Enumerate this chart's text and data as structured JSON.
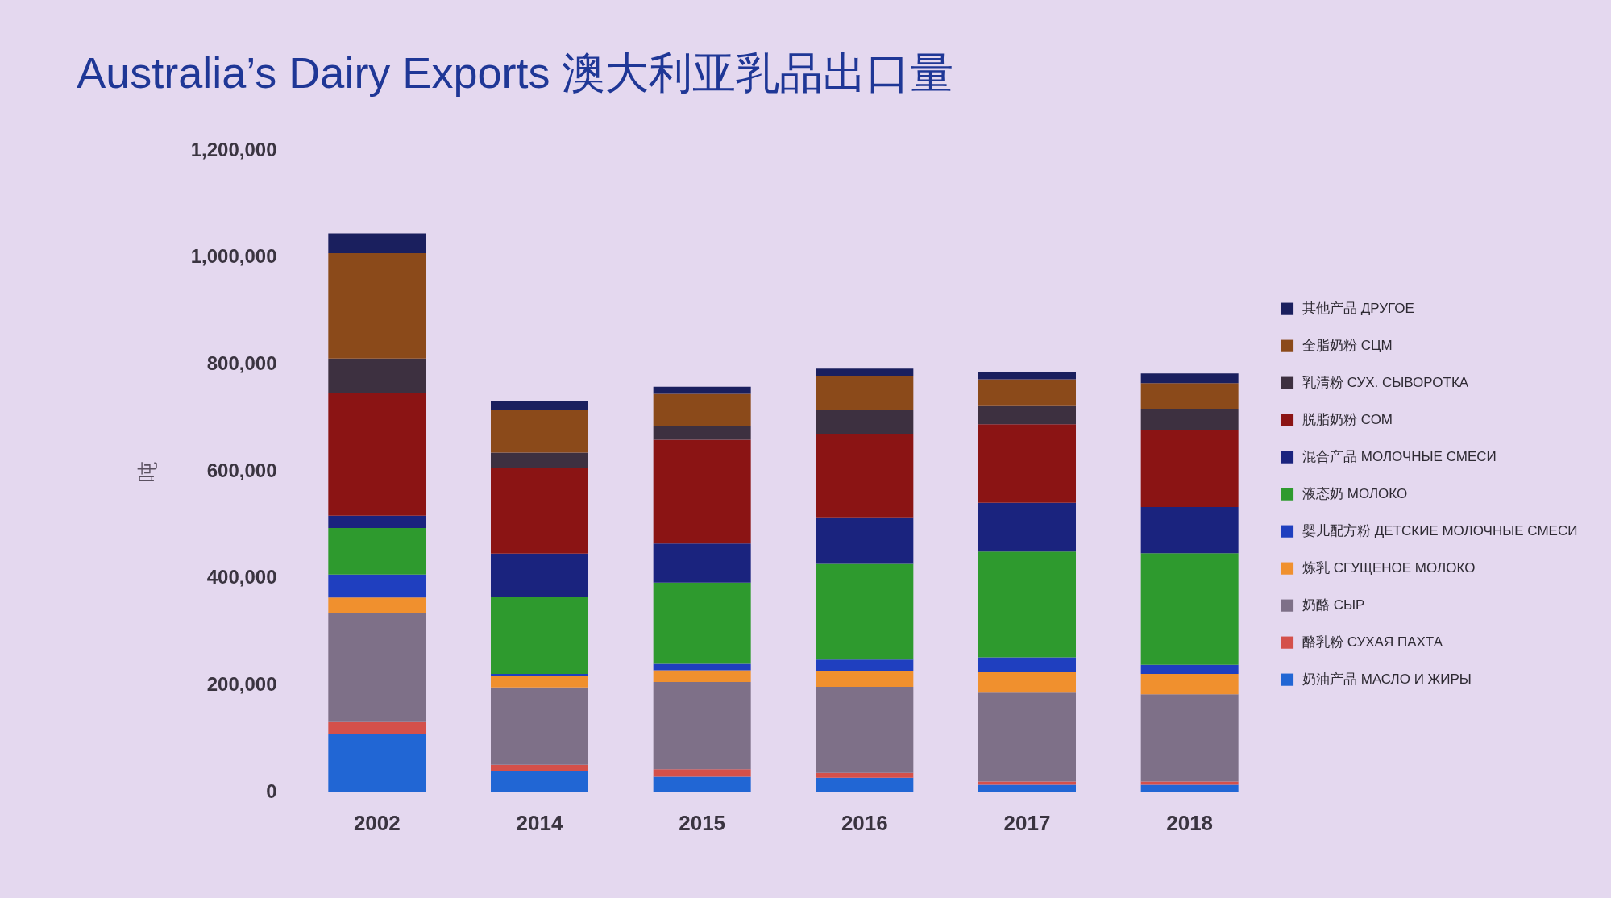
{
  "chart_data": {
    "type": "bar",
    "title": "Australia’s Dairy Exports 澳大利亚乳品出口量",
    "ylabel": "吨",
    "categories": [
      "2002",
      "2014",
      "2015",
      "2016",
      "2017",
      "2018"
    ],
    "stacked": true,
    "legend": "right",
    "ylim": [
      0,
      1200000
    ],
    "yticks": [
      0,
      {
        "value": 200000,
        "label": "200,000"
      },
      {
        "value": 400000,
        "label": "400,000"
      },
      {
        "value": 600000,
        "label": "600,000"
      },
      {
        "value": 800000,
        "label": "800,000"
      },
      {
        "value": 1000000,
        "label": "1,000,000"
      },
      {
        "value": 1200000,
        "label": "1,200,000"
      }
    ],
    "series": [
      {
        "name": "奶油产品 МАСЛО И ЖИРЫ",
        "color": "#2166d4",
        "values": [
          108000,
          38000,
          28000,
          26000,
          13000,
          13000
        ]
      },
      {
        "name": "酪乳粉 СУХАЯ ПАХТА",
        "color": "#d4504a",
        "values": [
          22000,
          12000,
          14000,
          9000,
          6000,
          6000
        ]
      },
      {
        "name": "奶酪 СЫР",
        "color": "#7e7088",
        "values": [
          204000,
          145000,
          163000,
          161000,
          166000,
          163000
        ]
      },
      {
        "name": "炼乳 СГУЩЕНОЕ МОЛОКО",
        "color": "#f0902e",
        "values": [
          29000,
          21000,
          22000,
          29000,
          38000,
          38000
        ]
      },
      {
        "name": "婴儿配方粉 ДЕТСКИЕ МОЛОЧНЫЕ СМЕСИ",
        "color": "#1f3fbf",
        "values": [
          43000,
          4000,
          12000,
          22000,
          28000,
          17000
        ]
      },
      {
        "name": "液态奶 МОЛОКО",
        "color": "#2e9a2e",
        "values": [
          87000,
          144000,
          152000,
          179000,
          198000,
          209000
        ]
      },
      {
        "name": "混合产品 МОЛОЧНЫЕ СМЕСИ",
        "color": "#1a237e",
        "values": [
          23000,
          81000,
          73000,
          87000,
          91000,
          86000
        ]
      },
      {
        "name": "脱脂奶粉 СОМ",
        "color": "#8b1414",
        "values": [
          229000,
          160000,
          194000,
          156000,
          147000,
          145000
        ]
      },
      {
        "name": "乳清粉 СУХ. СЫВОРОТКА",
        "color": "#3d3040",
        "values": [
          65000,
          29000,
          25000,
          44000,
          34000,
          39000
        ]
      },
      {
        "name": "全脂奶粉 СЦМ",
        "color": "#8b4a1a",
        "values": [
          197000,
          79000,
          61000,
          64000,
          50000,
          48000
        ]
      },
      {
        "name": "其他产品 ДРУГОЕ",
        "color": "#1a1f5e",
        "values": [
          37000,
          18000,
          13000,
          14000,
          14000,
          18000
        ]
      }
    ]
  }
}
